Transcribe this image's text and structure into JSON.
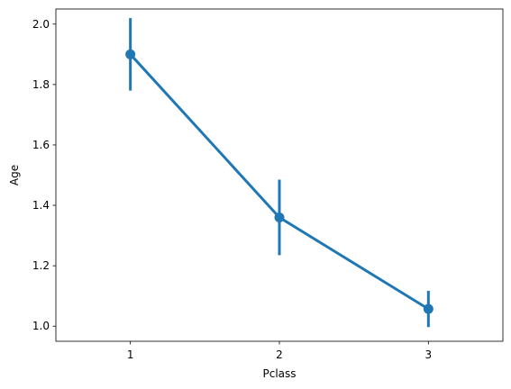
{
  "chart_data": {
    "type": "line",
    "title": "",
    "xlabel": "Pclass",
    "ylabel": "Age",
    "categories": [
      "1",
      "2",
      "3"
    ],
    "series": [
      {
        "values": [
          1.9,
          1.36,
          1.057
        ],
        "error_low": [
          1.78,
          1.235,
          0.997
        ],
        "error_high": [
          2.02,
          1.485,
          1.117
        ],
        "color": "#1f77b4"
      }
    ],
    "ylim": [
      0.95,
      2.05
    ],
    "yticks": [
      1.0,
      1.2,
      1.4,
      1.6,
      1.8,
      2.0
    ],
    "ytick_labels": [
      "1.0",
      "1.2",
      "1.4",
      "1.6",
      "1.8",
      "2.0"
    ],
    "grid": false,
    "legend": "none"
  }
}
